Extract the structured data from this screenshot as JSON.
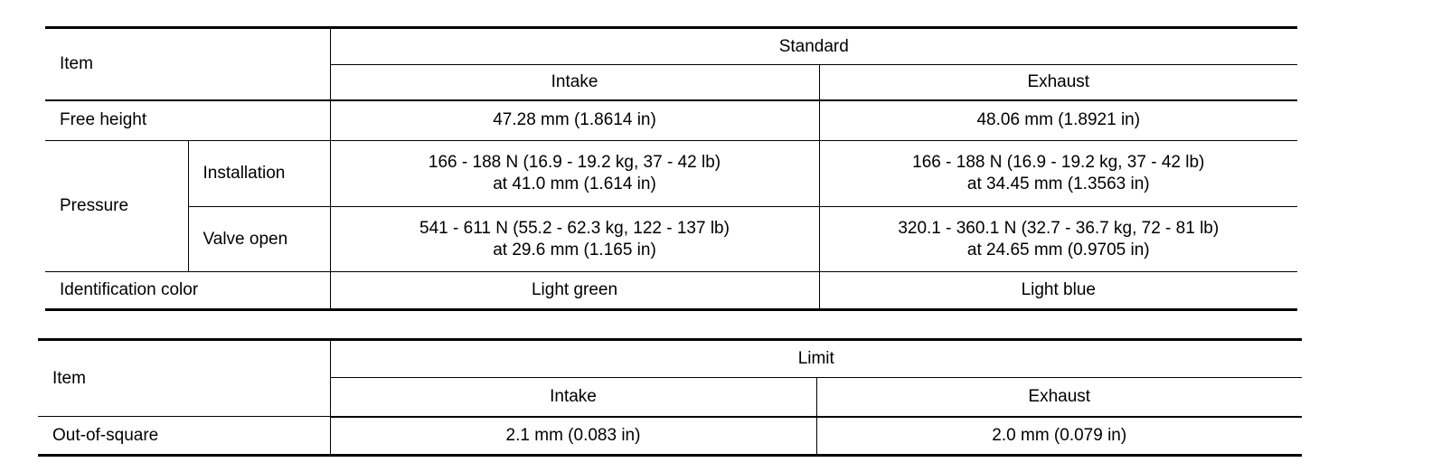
{
  "standard_table": {
    "item_header": "Item",
    "group_header": "Standard",
    "col_intake": "Intake",
    "col_exhaust": "Exhaust",
    "rows": {
      "free_height": {
        "label": "Free height",
        "intake": "47.28 mm (1.8614 in)",
        "exhaust": "48.06 mm (1.8921 in)"
      },
      "pressure_label": "Pressure",
      "installation": {
        "label": "Installation",
        "intake_1": "166 - 188 N (16.9 - 19.2 kg, 37 - 42 lb)",
        "intake_2": "at 41.0 mm (1.614 in)",
        "exhaust_1": "166 - 188 N (16.9 - 19.2 kg, 37 - 42 lb)",
        "exhaust_2": "at 34.45 mm (1.3563 in)"
      },
      "valve_open": {
        "label": "Valve open",
        "intake_1": "541 - 611 N (55.2 - 62.3 kg, 122 - 137 lb)",
        "intake_2": "at 29.6 mm (1.165 in)",
        "exhaust_1": "320.1 - 360.1 N (32.7 - 36.7 kg, 72 - 81 lb)",
        "exhaust_2": "at 24.65 mm (0.9705 in)"
      },
      "id_color": {
        "label": "Identification color",
        "intake": "Light green",
        "exhaust": "Light blue"
      }
    }
  },
  "limit_table": {
    "item_header": "Item",
    "group_header": "Limit",
    "col_intake": "Intake",
    "col_exhaust": "Exhaust",
    "row": {
      "label": "Out-of-square",
      "intake": "2.1 mm (0.083 in)",
      "exhaust": "2.0 mm (0.079 in)"
    }
  }
}
